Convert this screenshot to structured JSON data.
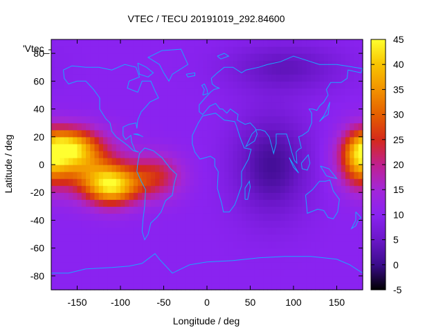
{
  "chart_data": {
    "type": "heatmap",
    "title": "VTEC / TECU 20191019_292.84600",
    "xlabel": "Longitude / deg",
    "ylabel": "Latitude / deg",
    "series_label": "'Vtec_",
    "xlim": [
      -180,
      180
    ],
    "ylim": [
      -90,
      90
    ],
    "xticks": [
      -150,
      -100,
      -50,
      0,
      50,
      100,
      150
    ],
    "yticks": [
      -80,
      -60,
      -40,
      -20,
      0,
      20,
      40,
      60,
      80
    ],
    "colorbar": {
      "range": [
        -5,
        45
      ],
      "ticks": [
        -5,
        0,
        5,
        10,
        15,
        20,
        25,
        30,
        35,
        40,
        45
      ],
      "palette": [
        "#000000",
        "#3b0c8c",
        "#6b17c9",
        "#8a23f0",
        "#a327d8",
        "#c0208e",
        "#d52a1a",
        "#e45f00",
        "#f29200",
        "#f8c400",
        "#ffff30"
      ]
    },
    "background_level": 10,
    "features": [
      {
        "name": "equatorial-anomaly-pacific",
        "lon": -150,
        "lat": 2,
        "level": 30,
        "spread_lon": 32,
        "spread_lat": 14
      },
      {
        "name": "southern-crest-pacific",
        "lon": -110,
        "lat": -15,
        "level": 40,
        "spread_lon": 22,
        "spread_lat": 10
      },
      {
        "name": "northern-crest-pacific",
        "lon": -160,
        "lat": 14,
        "level": 30,
        "spread_lon": 22,
        "spread_lat": 9
      },
      {
        "name": "south-america-extension",
        "lon": -60,
        "lat": -8,
        "level": 24,
        "spread_lon": 22,
        "spread_lat": 11
      },
      {
        "name": "west-pacific-dateline",
        "lon": 175,
        "lat": 5,
        "level": 27,
        "spread_lon": 15,
        "spread_lat": 14
      },
      {
        "name": "low-indian-ocean",
        "lon": 75,
        "lat": 0,
        "level": 1,
        "spread_lon": 30,
        "spread_lat": 25
      },
      {
        "name": "low-siberia",
        "lon": 90,
        "lat": 70,
        "level": 4,
        "spread_lon": 45,
        "spread_lat": 12
      }
    ],
    "coastlines": [
      {
        "name": "north-america",
        "points": [
          [
            -166,
            68
          ],
          [
            -156,
            71
          ],
          [
            -140,
            70
          ],
          [
            -125,
            70
          ],
          [
            -110,
            68
          ],
          [
            -95,
            72
          ],
          [
            -82,
            70
          ],
          [
            -78,
            63
          ],
          [
            -90,
            60
          ],
          [
            -92,
            55
          ],
          [
            -80,
            52
          ],
          [
            -75,
            60
          ],
          [
            -65,
            60
          ],
          [
            -60,
            53
          ],
          [
            -56,
            48
          ],
          [
            -66,
            45
          ],
          [
            -70,
            42
          ],
          [
            -76,
            38
          ],
          [
            -80,
            32
          ],
          [
            -81,
            26
          ],
          [
            -82,
            30
          ],
          [
            -90,
            29
          ],
          [
            -97,
            27
          ],
          [
            -97,
            21
          ],
          [
            -94,
            18
          ],
          [
            -88,
            21
          ],
          [
            -87,
            16
          ],
          [
            -83,
            10
          ],
          [
            -79,
            9
          ],
          [
            -85,
            10
          ],
          [
            -92,
            14
          ],
          [
            -105,
            20
          ],
          [
            -110,
            24
          ],
          [
            -112,
            30
          ],
          [
            -117,
            33
          ],
          [
            -124,
            40
          ],
          [
            -124,
            48
          ],
          [
            -131,
            54
          ],
          [
            -140,
            60
          ],
          [
            -150,
            60
          ],
          [
            -160,
            58
          ],
          [
            -165,
            62
          ],
          [
            -166,
            68
          ]
        ]
      },
      {
        "name": "south-america",
        "points": [
          [
            -78,
            8
          ],
          [
            -72,
            12
          ],
          [
            -62,
            10
          ],
          [
            -52,
            5
          ],
          [
            -42,
            -3
          ],
          [
            -35,
            -7
          ],
          [
            -38,
            -14
          ],
          [
            -40,
            -22
          ],
          [
            -48,
            -26
          ],
          [
            -53,
            -34
          ],
          [
            -58,
            -38
          ],
          [
            -65,
            -42
          ],
          [
            -68,
            -50
          ],
          [
            -72,
            -54
          ],
          [
            -75,
            -48
          ],
          [
            -74,
            -40
          ],
          [
            -72,
            -30
          ],
          [
            -71,
            -18
          ],
          [
            -76,
            -12
          ],
          [
            -81,
            -5
          ],
          [
            -80,
            1
          ],
          [
            -78,
            8
          ]
        ]
      },
      {
        "name": "greenland",
        "points": [
          [
            -52,
            82
          ],
          [
            -30,
            83
          ],
          [
            -22,
            72
          ],
          [
            -40,
            65
          ],
          [
            -44,
            60
          ],
          [
            -50,
            66
          ],
          [
            -55,
            72
          ],
          [
            -68,
            77
          ],
          [
            -52,
            82
          ]
        ]
      },
      {
        "name": "africa",
        "points": [
          [
            -17,
            21
          ],
          [
            -10,
            30
          ],
          [
            -5,
            35
          ],
          [
            10,
            37
          ],
          [
            20,
            32
          ],
          [
            32,
            31
          ],
          [
            34,
            28
          ],
          [
            38,
            20
          ],
          [
            43,
            12
          ],
          [
            51,
            11
          ],
          [
            48,
            4
          ],
          [
            40,
            -5
          ],
          [
            40,
            -15
          ],
          [
            35,
            -24
          ],
          [
            32,
            -29
          ],
          [
            26,
            -34
          ],
          [
            19,
            -34
          ],
          [
            17,
            -28
          ],
          [
            12,
            -17
          ],
          [
            13,
            -5
          ],
          [
            9,
            -1
          ],
          [
            9,
            4
          ],
          [
            4,
            6
          ],
          [
            -8,
            4
          ],
          [
            -14,
            9
          ],
          [
            -17,
            15
          ],
          [
            -17,
            21
          ]
        ]
      },
      {
        "name": "eurasia",
        "points": [
          [
            -9,
            43
          ],
          [
            -9,
            38
          ],
          [
            -5,
            36
          ],
          [
            3,
            42
          ],
          [
            10,
            44
          ],
          [
            15,
            40
          ],
          [
            18,
            40
          ],
          [
            23,
            37
          ],
          [
            27,
            40
          ],
          [
            36,
            36
          ],
          [
            35,
            32
          ],
          [
            44,
            29
          ],
          [
            50,
            30
          ],
          [
            56,
            26
          ],
          [
            58,
            22
          ],
          [
            55,
            17
          ],
          [
            45,
            13
          ],
          [
            52,
            22
          ],
          [
            57,
            25
          ],
          [
            62,
            25
          ],
          [
            67,
            24
          ],
          [
            72,
            20
          ],
          [
            77,
            8
          ],
          [
            80,
            15
          ],
          [
            80,
            22
          ],
          [
            88,
            22
          ],
          [
            92,
            22
          ],
          [
            95,
            16
          ],
          [
            98,
            9
          ],
          [
            101,
            3
          ],
          [
            104,
            1
          ],
          [
            103,
            9
          ],
          [
            106,
            11
          ],
          [
            109,
            12
          ],
          [
            106,
            20
          ],
          [
            110,
            21
          ],
          [
            117,
            24
          ],
          [
            121,
            30
          ],
          [
            121,
            37
          ],
          [
            118,
            40
          ],
          [
            122,
            40
          ],
          [
            127,
            39
          ],
          [
            130,
            42
          ],
          [
            135,
            45
          ],
          [
            140,
            50
          ],
          [
            138,
            54
          ],
          [
            143,
            59
          ],
          [
            155,
            59
          ],
          [
            162,
            62
          ],
          [
            163,
            68
          ],
          [
            178,
            66
          ],
          [
            180,
            69
          ],
          [
            170,
            70
          ],
          [
            150,
            72
          ],
          [
            130,
            72
          ],
          [
            110,
            76
          ],
          [
            100,
            78
          ],
          [
            85,
            74
          ],
          [
            70,
            72
          ],
          [
            60,
            70
          ],
          [
            45,
            68
          ],
          [
            40,
            66
          ],
          [
            30,
            70
          ],
          [
            20,
            70
          ],
          [
            12,
            66
          ],
          [
            5,
            62
          ],
          [
            6,
            58
          ],
          [
            10,
            56
          ],
          [
            14,
            55
          ],
          [
            8,
            54
          ],
          [
            4,
            52
          ],
          [
            -2,
            48
          ],
          [
            -9,
            43
          ]
        ]
      },
      {
        "name": "australia",
        "points": [
          [
            114,
            -22
          ],
          [
            122,
            -18
          ],
          [
            130,
            -12
          ],
          [
            137,
            -12
          ],
          [
            142,
            -11
          ],
          [
            146,
            -19
          ],
          [
            153,
            -25
          ],
          [
            151,
            -34
          ],
          [
            146,
            -39
          ],
          [
            140,
            -38
          ],
          [
            135,
            -33
          ],
          [
            128,
            -32
          ],
          [
            116,
            -35
          ],
          [
            114,
            -22
          ]
        ]
      },
      {
        "name": "antarctica-edge",
        "points": [
          [
            -180,
            -78
          ],
          [
            -160,
            -78
          ],
          [
            -140,
            -75
          ],
          [
            -110,
            -74
          ],
          [
            -90,
            -73
          ],
          [
            -75,
            -71
          ],
          [
            -60,
            -64
          ],
          [
            -55,
            -68
          ],
          [
            -40,
            -78
          ],
          [
            -20,
            -72
          ],
          [
            0,
            -70
          ],
          [
            30,
            -69
          ],
          [
            60,
            -67
          ],
          [
            90,
            -66
          ],
          [
            120,
            -66
          ],
          [
            150,
            -68
          ],
          [
            165,
            -72
          ],
          [
            180,
            -78
          ]
        ]
      },
      {
        "name": "madagascar",
        "points": [
          [
            44,
            -25
          ],
          [
            44,
            -17
          ],
          [
            49,
            -12
          ],
          [
            50,
            -16
          ],
          [
            47,
            -25
          ],
          [
            44,
            -25
          ]
        ]
      },
      {
        "name": "great-britain",
        "points": [
          [
            -5,
            50
          ],
          [
            1,
            51
          ],
          [
            0,
            54
          ],
          [
            -3,
            58
          ],
          [
            -6,
            57
          ],
          [
            -3,
            54
          ],
          [
            -5,
            50
          ]
        ]
      },
      {
        "name": "japan",
        "points": [
          [
            130,
            31
          ],
          [
            135,
            34
          ],
          [
            140,
            36
          ],
          [
            141,
            41
          ],
          [
            142,
            45
          ],
          [
            139,
            40
          ],
          [
            135,
            35
          ],
          [
            130,
            31
          ]
        ]
      },
      {
        "name": "new-zealand",
        "points": [
          [
            172,
            -34
          ],
          [
            178,
            -38
          ],
          [
            174,
            -41
          ],
          [
            172,
            -44
          ],
          [
            167,
            -46
          ],
          [
            172,
            -40
          ],
          [
            172,
            -34
          ]
        ]
      },
      {
        "name": "new-guinea",
        "points": [
          [
            131,
            -1
          ],
          [
            141,
            -3
          ],
          [
            150,
            -10
          ],
          [
            143,
            -9
          ],
          [
            138,
            -8
          ],
          [
            131,
            -1
          ]
        ]
      },
      {
        "name": "borneo-sumatra",
        "points": [
          [
            95,
            5
          ],
          [
            106,
            -6
          ],
          [
            100,
            -2
          ],
          [
            95,
            5
          ]
        ]
      },
      {
        "name": "borneo",
        "points": [
          [
            109,
            1
          ],
          [
            117,
            7
          ],
          [
            119,
            1
          ],
          [
            116,
            -4
          ],
          [
            110,
            -3
          ],
          [
            109,
            1
          ]
        ]
      },
      {
        "name": "iceland",
        "points": [
          [
            -24,
            65
          ],
          [
            -14,
            66
          ],
          [
            -14,
            64
          ],
          [
            -22,
            63
          ],
          [
            -24,
            65
          ]
        ]
      },
      {
        "name": "svalbard",
        "points": [
          [
            12,
            78
          ],
          [
            20,
            80
          ],
          [
            25,
            78
          ],
          [
            16,
            76
          ],
          [
            12,
            78
          ]
        ]
      },
      {
        "name": "cuba",
        "points": [
          [
            -85,
            22
          ],
          [
            -77,
            21
          ],
          [
            -74,
            20
          ],
          [
            -80,
            22
          ],
          [
            -85,
            22
          ]
        ]
      },
      {
        "name": "baffin",
        "points": [
          [
            -80,
            73
          ],
          [
            -70,
            70
          ],
          [
            -62,
            66
          ],
          [
            -68,
            63
          ],
          [
            -78,
            65
          ],
          [
            -80,
            73
          ]
        ]
      }
    ]
  }
}
